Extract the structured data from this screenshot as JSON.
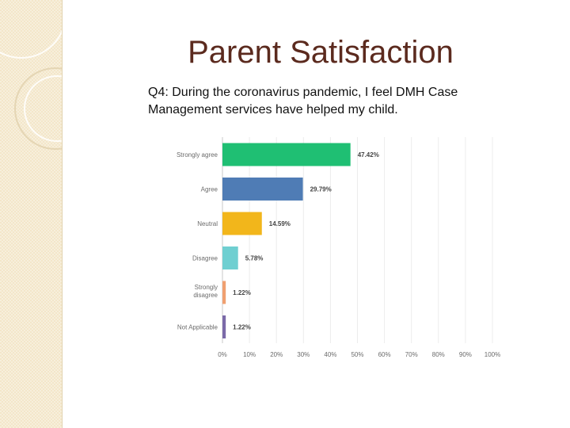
{
  "slide": {
    "title": "Parent Satisfaction",
    "question": "Q4: During the coronavirus pandemic, I feel DMH Case Management services have helped my child."
  },
  "chart_data": {
    "type": "bar",
    "orientation": "horizontal",
    "title": "",
    "xlabel": "",
    "ylabel": "",
    "xlim": [
      0,
      100
    ],
    "grid": true,
    "categories": [
      "Strongly agree",
      "Agree",
      "Neutral",
      "Disagree",
      "Strongly disagree",
      "Not Applicable"
    ],
    "values": [
      47.42,
      29.79,
      14.59,
      5.78,
      1.22,
      1.22
    ],
    "value_labels": [
      "47.42%",
      "29.79%",
      "14.59%",
      "5.78%",
      "1.22%",
      "1.22%"
    ],
    "colors": [
      "#1fbf73",
      "#4f7cb5",
      "#f2b61b",
      "#6fcfd1",
      "#f0a070",
      "#7b6aa8"
    ],
    "ticks": [
      "0%",
      "10%",
      "20%",
      "30%",
      "40%",
      "50%",
      "60%",
      "70%",
      "80%",
      "90%",
      "100%"
    ]
  }
}
